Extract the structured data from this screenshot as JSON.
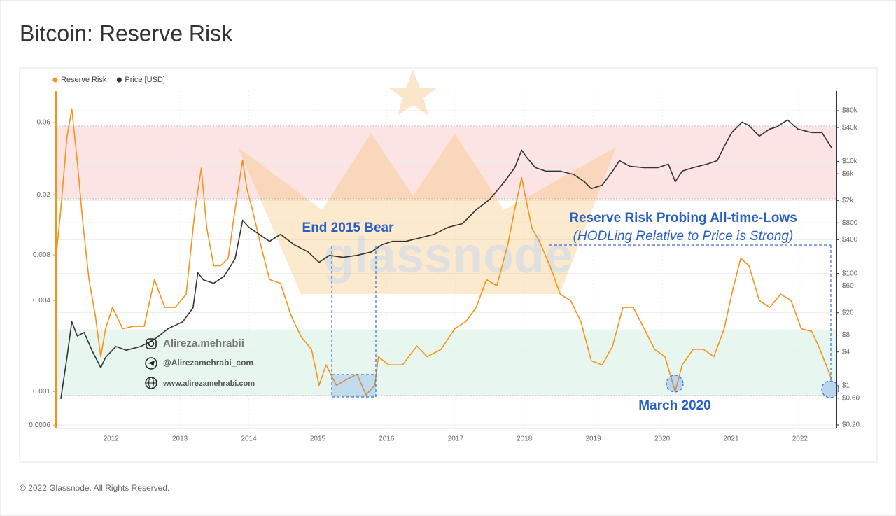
{
  "title": "Bitcoin: Reserve Risk",
  "footer": "© 2022 Glassnode. All Rights Reserved.",
  "watermarks": {
    "brand": "glassnode",
    "instagram": "Alireza.mehrabii",
    "telegram": "@Alirezamehrabi_com",
    "website": "www.alirezamehrabi.com"
  },
  "chart_data": {
    "type": "line",
    "xlim": [
      2011.2,
      2022.53
    ],
    "xticks": [
      2012,
      2013,
      2014,
      2015,
      2016,
      2017,
      2018,
      2019,
      2020,
      2021,
      2022
    ],
    "ylim": [
      0.00057,
      0.097
    ],
    "log_y": true,
    "yticks": [
      0.0006,
      0.001,
      0.004,
      0.008,
      0.02,
      0.06
    ],
    "y2lim": [
      0.173,
      179000
    ],
    "log_y2": true,
    "y2ticks": [
      {
        "value": 0.2,
        "label": "$0.20"
      },
      {
        "value": 0.6,
        "label": "$0.60"
      },
      {
        "value": 1,
        "label": "$1"
      },
      {
        "value": 4,
        "label": "$4"
      },
      {
        "value": 8,
        "label": "$8"
      },
      {
        "value": 20,
        "label": "$20"
      },
      {
        "value": 60,
        "label": "$60"
      },
      {
        "value": 100,
        "label": "$100"
      },
      {
        "value": 400,
        "label": "$400"
      },
      {
        "value": 800,
        "label": "$800"
      },
      {
        "value": 2000,
        "label": "$2k"
      },
      {
        "value": 6000,
        "label": "$6k"
      },
      {
        "value": 10000,
        "label": "$10k"
      },
      {
        "value": 40000,
        "label": "$40k"
      },
      {
        "value": 80000,
        "label": "$80k"
      }
    ],
    "legend": "top-left",
    "bands": [
      {
        "from": 0.0188,
        "to": 0.0569,
        "color": "rgba(240,90,90,0.16)"
      },
      {
        "from": 0.00094,
        "to": 0.00255,
        "color": "rgba(70,190,130,0.13)"
      }
    ],
    "annotations": [
      "End 2015 Bear",
      "Reserve Risk Probing All-time-Lows",
      "(HODLing Relative to Price is Strong)",
      "March 2020"
    ],
    "series": [
      {
        "name": "Reserve Risk",
        "color": "#f7931a",
        "x": [
          2011.21,
          2011.27,
          2011.36,
          2011.43,
          2011.51,
          2011.59,
          2011.68,
          2011.77,
          2011.85,
          2011.92,
          2012.02,
          2012.17,
          2012.32,
          2012.48,
          2012.63,
          2012.78,
          2012.93,
          2013.09,
          2013.22,
          2013.31,
          2013.39,
          2013.49,
          2013.59,
          2013.7,
          2013.8,
          2013.91,
          2013.97,
          2014.05,
          2014.17,
          2014.3,
          2014.46,
          2014.61,
          2014.76,
          2014.91,
          2015.02,
          2015.12,
          2015.27,
          2015.42,
          2015.57,
          2015.7,
          2015.83,
          2015.88,
          2016.03,
          2016.23,
          2016.44,
          2016.59,
          2016.79,
          2016.99,
          2017.15,
          2017.3,
          2017.45,
          2017.6,
          2017.76,
          2017.86,
          2017.96,
          2018.03,
          2018.11,
          2018.21,
          2018.37,
          2018.52,
          2018.67,
          2018.82,
          2018.97,
          2019.13,
          2019.28,
          2019.43,
          2019.58,
          2019.74,
          2019.89,
          2020.04,
          2020.19,
          2020.29,
          2020.45,
          2020.6,
          2020.75,
          2020.9,
          2021.01,
          2021.14,
          2021.26,
          2021.41,
          2021.56,
          2021.72,
          2021.87,
          2022.02,
          2022.17,
          2022.27,
          2022.38,
          2022.46
        ],
        "values": [
          0.0085,
          0.016,
          0.048,
          0.074,
          0.033,
          0.013,
          0.0055,
          0.0032,
          0.0017,
          0.0026,
          0.0036,
          0.0026,
          0.0027,
          0.0027,
          0.0055,
          0.0036,
          0.0036,
          0.0044,
          0.016,
          0.03,
          0.012,
          0.0068,
          0.0068,
          0.0076,
          0.016,
          0.034,
          0.022,
          0.016,
          0.0094,
          0.0055,
          0.0052,
          0.0032,
          0.0023,
          0.0019,
          0.0011,
          0.0015,
          0.0011,
          0.0012,
          0.0013,
          0.00095,
          0.0011,
          0.0017,
          0.0015,
          0.0015,
          0.002,
          0.0017,
          0.0019,
          0.0026,
          0.0029,
          0.0036,
          0.0055,
          0.005,
          0.0094,
          0.016,
          0.026,
          0.018,
          0.012,
          0.01,
          0.0068,
          0.0044,
          0.004,
          0.0029,
          0.0016,
          0.0015,
          0.002,
          0.0036,
          0.0036,
          0.0026,
          0.0019,
          0.0017,
          0.001,
          0.0015,
          0.0019,
          0.0019,
          0.0017,
          0.0026,
          0.0044,
          0.0076,
          0.0068,
          0.004,
          0.0036,
          0.0044,
          0.004,
          0.0026,
          0.0025,
          0.002,
          0.0015,
          0.0012
        ]
      },
      {
        "name": "Price [USD]",
        "color": "#333333",
        "axis": "y2",
        "x": [
          2011.27,
          2011.36,
          2011.43,
          2011.51,
          2011.61,
          2011.72,
          2011.85,
          2011.92,
          2012.07,
          2012.22,
          2012.43,
          2012.63,
          2012.83,
          2013.04,
          2013.19,
          2013.26,
          2013.34,
          2013.49,
          2013.64,
          2013.8,
          2013.91,
          2014.0,
          2014.15,
          2014.3,
          2014.46,
          2014.66,
          2014.86,
          2015.02,
          2015.17,
          2015.37,
          2015.57,
          2015.78,
          2015.93,
          2016.08,
          2016.28,
          2016.49,
          2016.69,
          2016.89,
          2017.1,
          2017.3,
          2017.5,
          2017.71,
          2017.86,
          2017.96,
          2018.03,
          2018.16,
          2018.31,
          2018.52,
          2018.72,
          2018.87,
          2018.97,
          2019.13,
          2019.28,
          2019.38,
          2019.53,
          2019.74,
          2019.94,
          2020.09,
          2020.19,
          2020.29,
          2020.45,
          2020.65,
          2020.8,
          2020.9,
          2021.01,
          2021.16,
          2021.26,
          2021.41,
          2021.56,
          2021.66,
          2021.82,
          2021.97,
          2022.17,
          2022.32,
          2022.46
        ],
        "values": [
          0.58,
          3.2,
          13.8,
          7.7,
          8.9,
          4.3,
          2.1,
          3.2,
          5,
          4.3,
          5,
          6.7,
          10.4,
          13.8,
          24.5,
          103,
          77,
          67,
          89,
          183,
          891,
          668,
          500,
          375,
          500,
          325,
          243,
          158,
          211,
          194,
          211,
          243,
          325,
          375,
          375,
          434,
          500,
          668,
          773,
          1370,
          2110,
          4330,
          7720,
          15800,
          11900,
          7720,
          6680,
          6680,
          5790,
          4330,
          3250,
          3760,
          6680,
          10300,
          8180,
          7720,
          7720,
          8910,
          4330,
          6680,
          7720,
          8910,
          10300,
          18300,
          32600,
          50100,
          43400,
          28200,
          37600,
          41000,
          54600,
          37600,
          32600,
          32600,
          17300
        ]
      }
    ]
  }
}
